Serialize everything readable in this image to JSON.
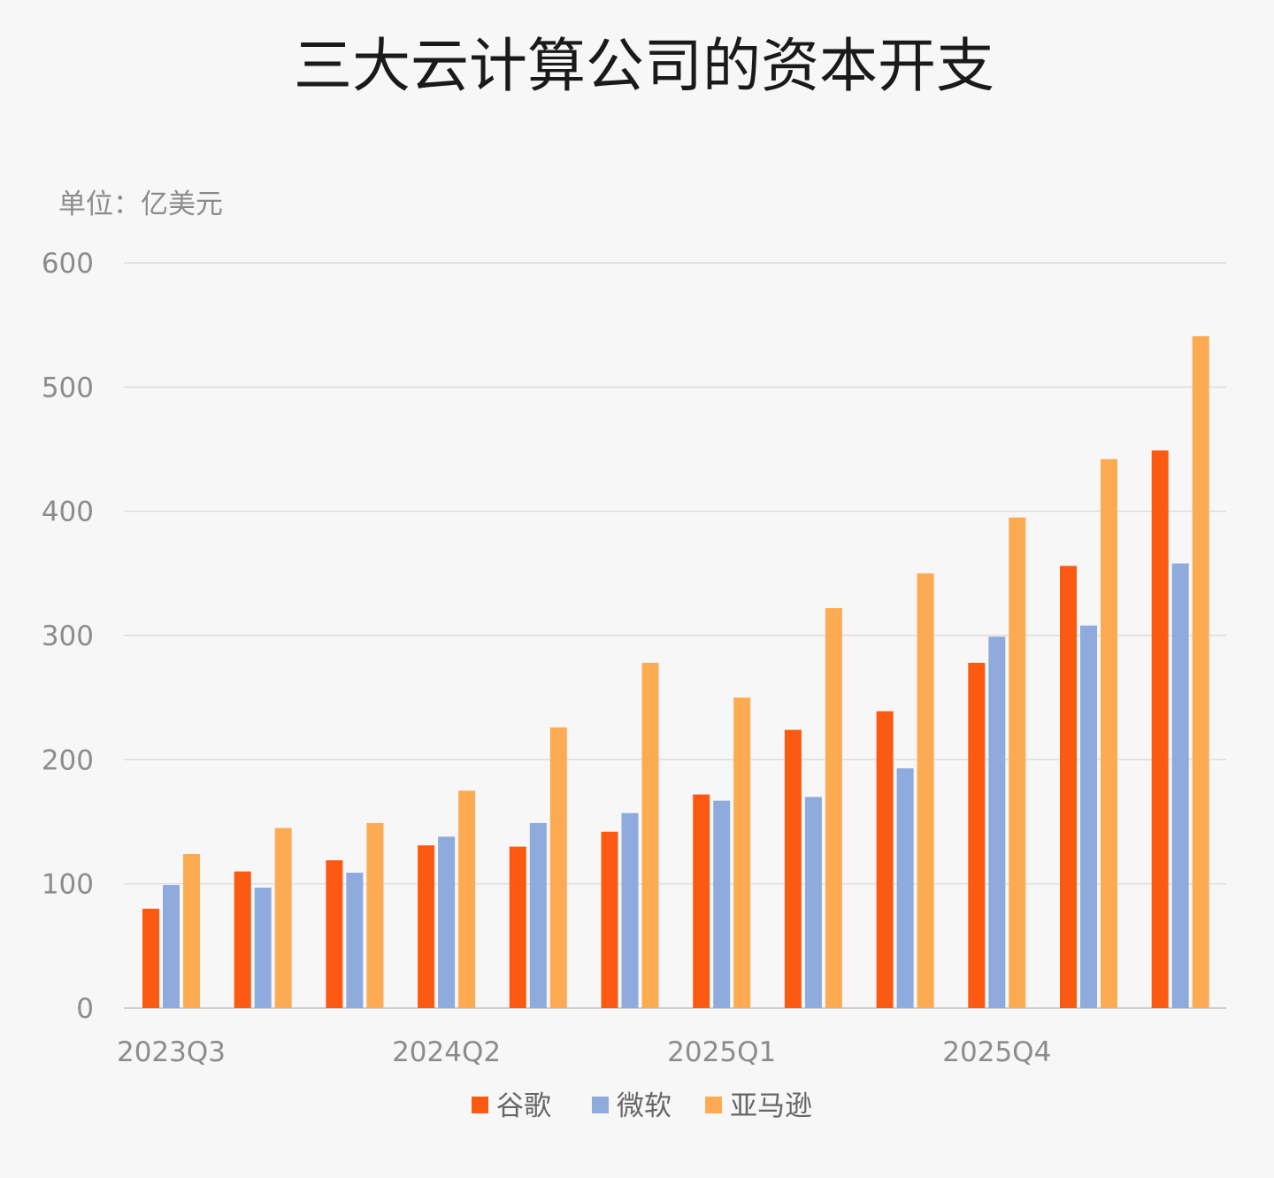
{
  "chart_data": {
    "type": "bar",
    "title": "三大云计算公司的资本开支",
    "unit_label": "单位：亿美元",
    "xlabel": "",
    "ylabel": "",
    "ylim": [
      0,
      600
    ],
    "yticks": [
      0,
      100,
      200,
      300,
      400,
      500,
      600
    ],
    "x_tick_labels": [
      {
        "index": 0,
        "label": "2023Q3"
      },
      {
        "index": 3,
        "label": "2024Q2"
      },
      {
        "index": 6,
        "label": "2025Q1"
      },
      {
        "index": 9,
        "label": "2025Q4"
      }
    ],
    "category_count": 12,
    "grid": true,
    "legend_position": "bottom",
    "series": [
      {
        "name": "谷歌",
        "color": "#fc5a12",
        "values": [
          80,
          110,
          119,
          131,
          130,
          142,
          172,
          224,
          239,
          278,
          356,
          449
        ]
      },
      {
        "name": "微软",
        "color": "#8faadc",
        "values": [
          99,
          97,
          109,
          138,
          149,
          157,
          167,
          170,
          193,
          299,
          308,
          358
        ]
      },
      {
        "name": "亚马逊",
        "color": "#fdab52",
        "values": [
          124,
          145,
          149,
          175,
          226,
          278,
          250,
          322,
          350,
          395,
          442,
          541
        ]
      }
    ]
  }
}
